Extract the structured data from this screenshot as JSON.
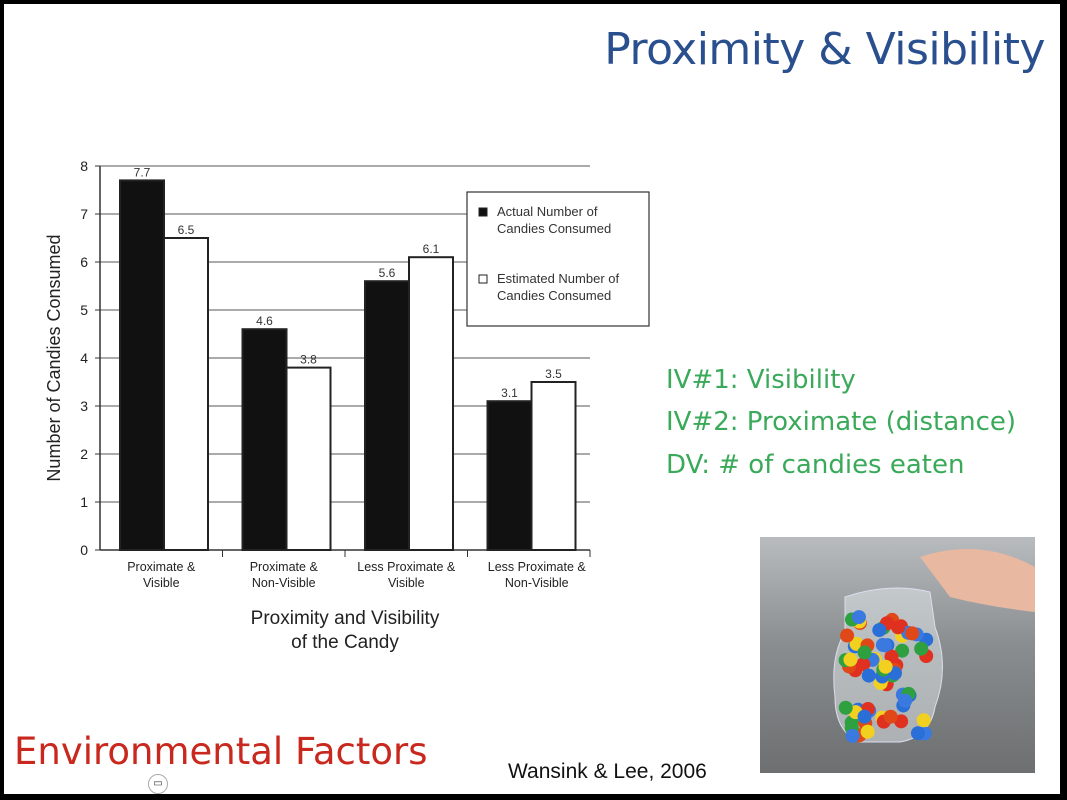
{
  "slide": {
    "title": "Proximity & Visibility",
    "variables": [
      "IV#1:  Visibility",
      "IV#2: Proximate (distance)",
      "DV:  # of candies eaten"
    ],
    "footer": "Environmental Factors",
    "citation": "Wansink & Lee, 2006",
    "variables_color": "#3aaa5a",
    "title_color": "#2a4f8f",
    "footer_color": "#c8281e"
  },
  "chart_data": {
    "type": "bar",
    "categories": [
      [
        "Proximate &",
        "Visible"
      ],
      [
        "Proximate &",
        "Non-Visible"
      ],
      [
        "Less Proximate &",
        "Visible"
      ],
      [
        "Less Proximate &",
        "Non-Visible"
      ]
    ],
    "series": [
      {
        "name": [
          "Actual Number of",
          "Candies Consumed"
        ],
        "values": [
          7.7,
          4.6,
          5.6,
          3.1
        ],
        "color": "#111111"
      },
      {
        "name": [
          "Estimated Number of",
          "Candies Consumed"
        ],
        "values": [
          6.5,
          3.8,
          6.1,
          3.5
        ],
        "color": "#ffffff"
      }
    ],
    "data_labels": [
      [
        "7.7",
        "4.6",
        "5.6",
        "3.1"
      ],
      [
        "6.5",
        "3.8",
        "6.1",
        "3.5"
      ]
    ],
    "xlabel": [
      "Proximity and Visibility",
      "of the Candy"
    ],
    "ylabel": "Number of Candies Consumed",
    "ylim": [
      0,
      8
    ],
    "yticks": [
      "0",
      "1",
      "2",
      "3",
      "4",
      "5",
      "6",
      "7",
      "8"
    ],
    "grid": true,
    "legend": "top-right"
  }
}
